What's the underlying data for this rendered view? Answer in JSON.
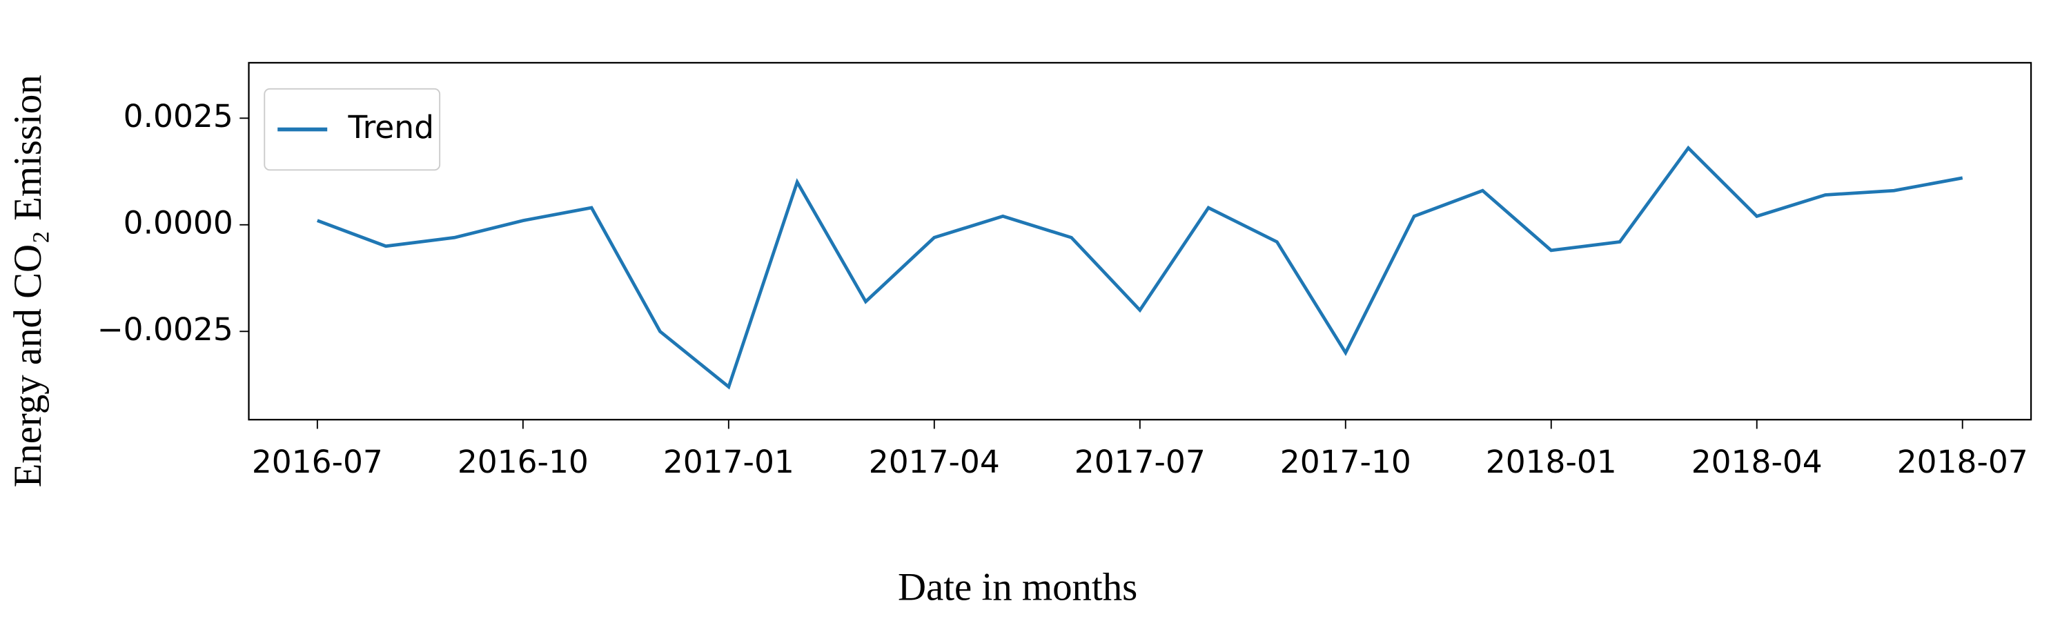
{
  "chart_data": {
    "type": "line",
    "xlabel": "Date in months",
    "ylabel": "Energy and CO₂ Emission",
    "x": [
      "2016-07",
      "2016-08",
      "2016-09",
      "2016-10",
      "2016-11",
      "2016-12",
      "2017-01",
      "2017-02",
      "2017-03",
      "2017-04",
      "2017-05",
      "2017-06",
      "2017-07",
      "2017-08",
      "2017-09",
      "2017-10",
      "2017-11",
      "2017-12",
      "2018-01",
      "2018-02",
      "2018-03",
      "2018-04",
      "2018-05",
      "2018-06",
      "2018-07"
    ],
    "series": [
      {
        "name": "Trend",
        "color": "#1f77b4",
        "values": [
          0.0001,
          -0.0005,
          -0.0003,
          0.0001,
          0.0004,
          -0.0025,
          -0.0038,
          0.001,
          -0.0018,
          -0.0003,
          0.0002,
          -0.0003,
          -0.002,
          0.0004,
          -0.0004,
          -0.003,
          0.0002,
          0.0008,
          -0.0006,
          -0.0004,
          0.0018,
          0.0002,
          0.0007,
          0.0008,
          0.0011
        ]
      }
    ],
    "xlim": [
      "2016-06",
      "2018-08"
    ],
    "xticks": [
      "2016-07",
      "2016-10",
      "2017-01",
      "2017-04",
      "2017-07",
      "2017-10",
      "2018-01",
      "2018-04",
      "2018-07"
    ],
    "ylim": [
      -0.00457,
      0.0038
    ],
    "yticks": [
      {
        "value": -0.0025,
        "label": "−0.0025"
      },
      {
        "value": 0,
        "label": "0.0000"
      },
      0.0025
    ],
    "legend": "upper left"
  }
}
